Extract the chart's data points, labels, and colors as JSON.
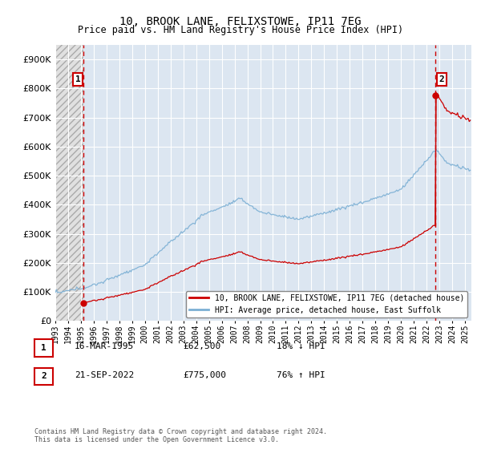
{
  "title": "10, BROOK LANE, FELIXSTOWE, IP11 7EG",
  "subtitle": "Price paid vs. HM Land Registry's House Price Index (HPI)",
  "sale1_label": "16-MAR-1995",
  "sale1_price": 62500,
  "sale1_hpi_pct": "18% ↓ HPI",
  "sale2_label": "21-SEP-2022",
  "sale2_price": 775000,
  "sale2_hpi_pct": "76% ↑ HPI",
  "legend_line1": "10, BROOK LANE, FELIXSTOWE, IP11 7EG (detached house)",
  "legend_line2": "HPI: Average price, detached house, East Suffolk",
  "footnote": "Contains HM Land Registry data © Crown copyright and database right 2024.\nThis data is licensed under the Open Government Licence v3.0.",
  "ylim_min": 0,
  "ylim_max": 950000,
  "plot_bg_color": "#dce6f1",
  "grid_color": "#ffffff",
  "hpi_line_color": "#7bafd4",
  "price_line_color": "#cc0000",
  "dot_color": "#cc0000",
  "dashed_line_color": "#cc0000"
}
